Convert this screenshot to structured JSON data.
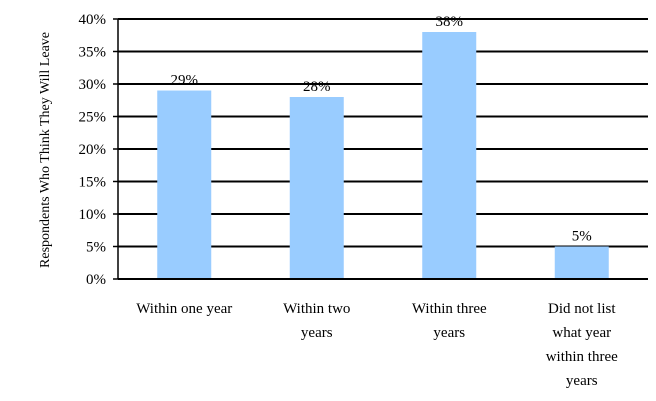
{
  "chart_data": {
    "type": "bar",
    "title": "",
    "xlabel": "",
    "ylabel": "Respondents Who Think They Will Leave",
    "categories": [
      [
        "Within one year"
      ],
      [
        "Within two",
        "years"
      ],
      [
        "Within three",
        "years"
      ],
      [
        "Did not list",
        "what year",
        "within three",
        "years"
      ]
    ],
    "values": [
      29,
      28,
      38,
      5
    ],
    "data_labels": [
      "29%",
      "28%",
      "38%",
      "5%"
    ],
    "ylim": [
      0,
      40
    ],
    "yticks": [
      "0%",
      "5%",
      "10%",
      "15%",
      "20%",
      "25%",
      "30%",
      "35%",
      "40%"
    ],
    "grid": true,
    "bar_color": "#99CCFF"
  }
}
